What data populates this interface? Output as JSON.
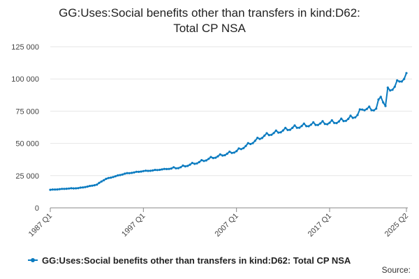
{
  "chart_data": {
    "type": "line",
    "title_lines": [
      "GG:Uses:Social benefits other than transfers in kind:D62:",
      "Total CP NSA"
    ],
    "title": "GG:Uses:Social benefits other than transfers in kind:D62: Total CP NSA",
    "y_ticks": [
      0,
      25000,
      50000,
      75000,
      100000,
      125000
    ],
    "y_tick_labels": [
      "0",
      "25 000",
      "50 000",
      "75 000",
      "100 000",
      "125 000"
    ],
    "ylim": [
      0,
      125000
    ],
    "x_tick_labels": [
      "1987 Q1",
      "1997 Q1",
      "2007 Q1",
      "2017 Q1",
      "2025 Q2"
    ],
    "x_tick_years": [
      1987,
      1997,
      2007,
      2017,
      2025.25
    ],
    "xlim": [
      1987,
      2025.25
    ],
    "grid": "horizontal",
    "legend_position": "bottom",
    "series": [
      {
        "name": "GG:Uses:Social benefits other than transfers in kind:D62: Total CP NSA",
        "color": "#0a7bc0",
        "anchors": [
          [
            1987.0,
            14000
          ],
          [
            1989.0,
            15000
          ],
          [
            1990.0,
            15300
          ],
          [
            1991.0,
            16500
          ],
          [
            1992.0,
            18000
          ],
          [
            1992.5,
            20500
          ],
          [
            1993.0,
            22500
          ],
          [
            1994.0,
            24500
          ],
          [
            1995.0,
            26500
          ],
          [
            1996.0,
            27500
          ],
          [
            1997.0,
            28500
          ],
          [
            1998.0,
            29000
          ],
          [
            1999.0,
            29800
          ],
          [
            2000.0,
            30500
          ],
          [
            2001.0,
            31500
          ],
          [
            2002.0,
            33500
          ],
          [
            2003.0,
            35500
          ],
          [
            2004.0,
            38000
          ],
          [
            2005.0,
            40000
          ],
          [
            2006.0,
            42000
          ],
          [
            2007.0,
            44000
          ],
          [
            2008.0,
            48000
          ],
          [
            2009.0,
            52000
          ],
          [
            2010.0,
            56000
          ],
          [
            2011.0,
            58000
          ],
          [
            2012.0,
            60000
          ],
          [
            2013.0,
            62000
          ],
          [
            2014.0,
            63500
          ],
          [
            2015.0,
            64500
          ],
          [
            2016.0,
            65500
          ],
          [
            2017.0,
            66000
          ],
          [
            2018.0,
            67000
          ],
          [
            2019.0,
            69000
          ],
          [
            2020.0,
            72000
          ],
          [
            2020.5,
            77000
          ],
          [
            2021.5,
            76500
          ],
          [
            2022.0,
            77000
          ],
          [
            2022.5,
            87000
          ],
          [
            2023.0,
            79000
          ],
          [
            2023.25,
            91000
          ],
          [
            2024.0,
            94000
          ],
          [
            2024.5,
            99000
          ],
          [
            2025.0,
            100000
          ],
          [
            2025.25,
            102000
          ]
        ],
        "seasonal_amplitude": 0.025
      }
    ]
  },
  "source_label": "Source:"
}
